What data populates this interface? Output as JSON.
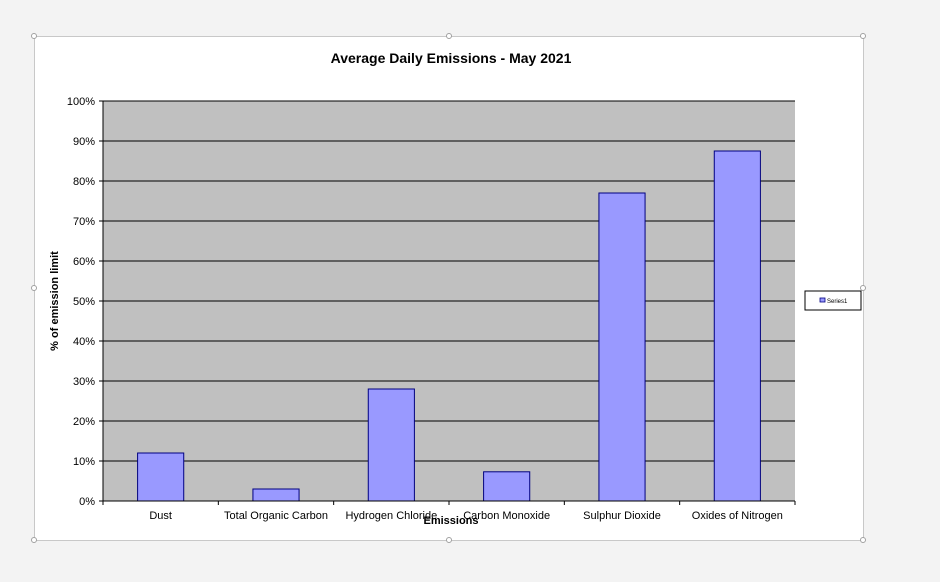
{
  "chart_data": {
    "type": "bar",
    "title": "Average Daily Emissions - May 2021",
    "xlabel": "Emissions",
    "ylabel": "% of emission limit",
    "categories": [
      "Dust",
      "Total Organic Carbon",
      "Hydrogen Chloride",
      "Carbon Monoxide",
      "Sulphur Dioxide",
      "Oxides of Nitrogen"
    ],
    "series": [
      {
        "name": "Series1",
        "values": [
          12,
          3,
          28,
          7.3,
          77,
          87.5
        ]
      }
    ],
    "ylim": [
      0,
      100
    ],
    "yticks": [
      "0%",
      "10%",
      "20%",
      "30%",
      "40%",
      "50%",
      "60%",
      "70%",
      "80%",
      "90%",
      "100%"
    ],
    "grid": true,
    "legend_position": "right",
    "colors": {
      "bar_fill": "#9999ff",
      "bar_stroke": "#000080",
      "plot_background": "#c0c0c0"
    }
  }
}
